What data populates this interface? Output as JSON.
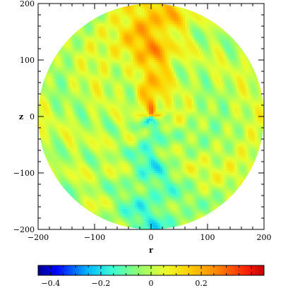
{
  "chart_data": {
    "type": "heatmap",
    "title": "",
    "xlabel": "r",
    "ylabel": "z",
    "xlim": [
      -200,
      200
    ],
    "ylim": [
      -200,
      200
    ],
    "x_ticks": [
      -200,
      -100,
      0,
      100,
      200
    ],
    "y_ticks": [
      -200,
      -100,
      0,
      100,
      200
    ],
    "domain_shape": "disk of radius 200 centered at r=0, z=0",
    "colorbar": {
      "range": [
        -0.45,
        0.45
      ],
      "ticks": [
        -0.4,
        -0.2,
        0,
        0.2
      ],
      "tick_labels": [
        "−0.4",
        "−0.2",
        "0",
        "0.2"
      ],
      "stops": [
        {
          "value": -0.45,
          "color": "#00008f"
        },
        {
          "value": -0.38,
          "color": "#0000ff"
        },
        {
          "value": -0.25,
          "color": "#00b8ff"
        },
        {
          "value": -0.15,
          "color": "#40ffd0"
        },
        {
          "value": -0.05,
          "color": "#90ff70"
        },
        {
          "value": 0.05,
          "color": "#e8ff30"
        },
        {
          "value": 0.15,
          "color": "#ffd000"
        },
        {
          "value": 0.27,
          "color": "#ff8000"
        },
        {
          "value": 0.38,
          "color": "#ff2000"
        },
        {
          "value": 0.45,
          "color": "#c00000"
        }
      ]
    },
    "field_features": {
      "background_value": 0.0,
      "upper_jet_value": 0.18,
      "lower_jet_value": -0.12,
      "filament_amplitude": 0.08
    }
  }
}
